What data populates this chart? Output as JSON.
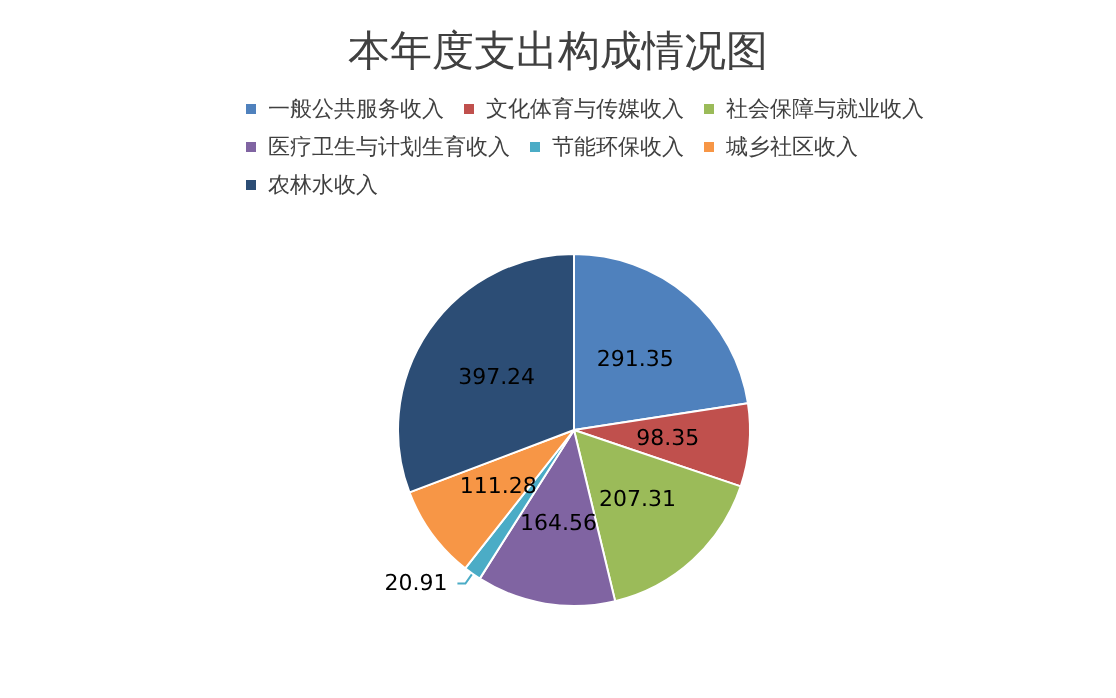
{
  "chart_data": {
    "type": "pie",
    "title": "本年度支出构成情况图",
    "categories": [
      "一般公共服务收入",
      "文化体育与传媒收入",
      "社会保障与就业收入",
      "医疗卫生与计划生育收入",
      "节能环保收入",
      "城乡社区收入",
      "农林水收入"
    ],
    "values": [
      291.35,
      98.35,
      207.31,
      164.56,
      20.91,
      111.28,
      397.24
    ],
    "colors": [
      "#4f81bd",
      "#c0504d",
      "#9bbb59",
      "#8064a2",
      "#4bacc6",
      "#f79646",
      "#2c4d75"
    ],
    "data_labels": true,
    "legend": "top"
  }
}
